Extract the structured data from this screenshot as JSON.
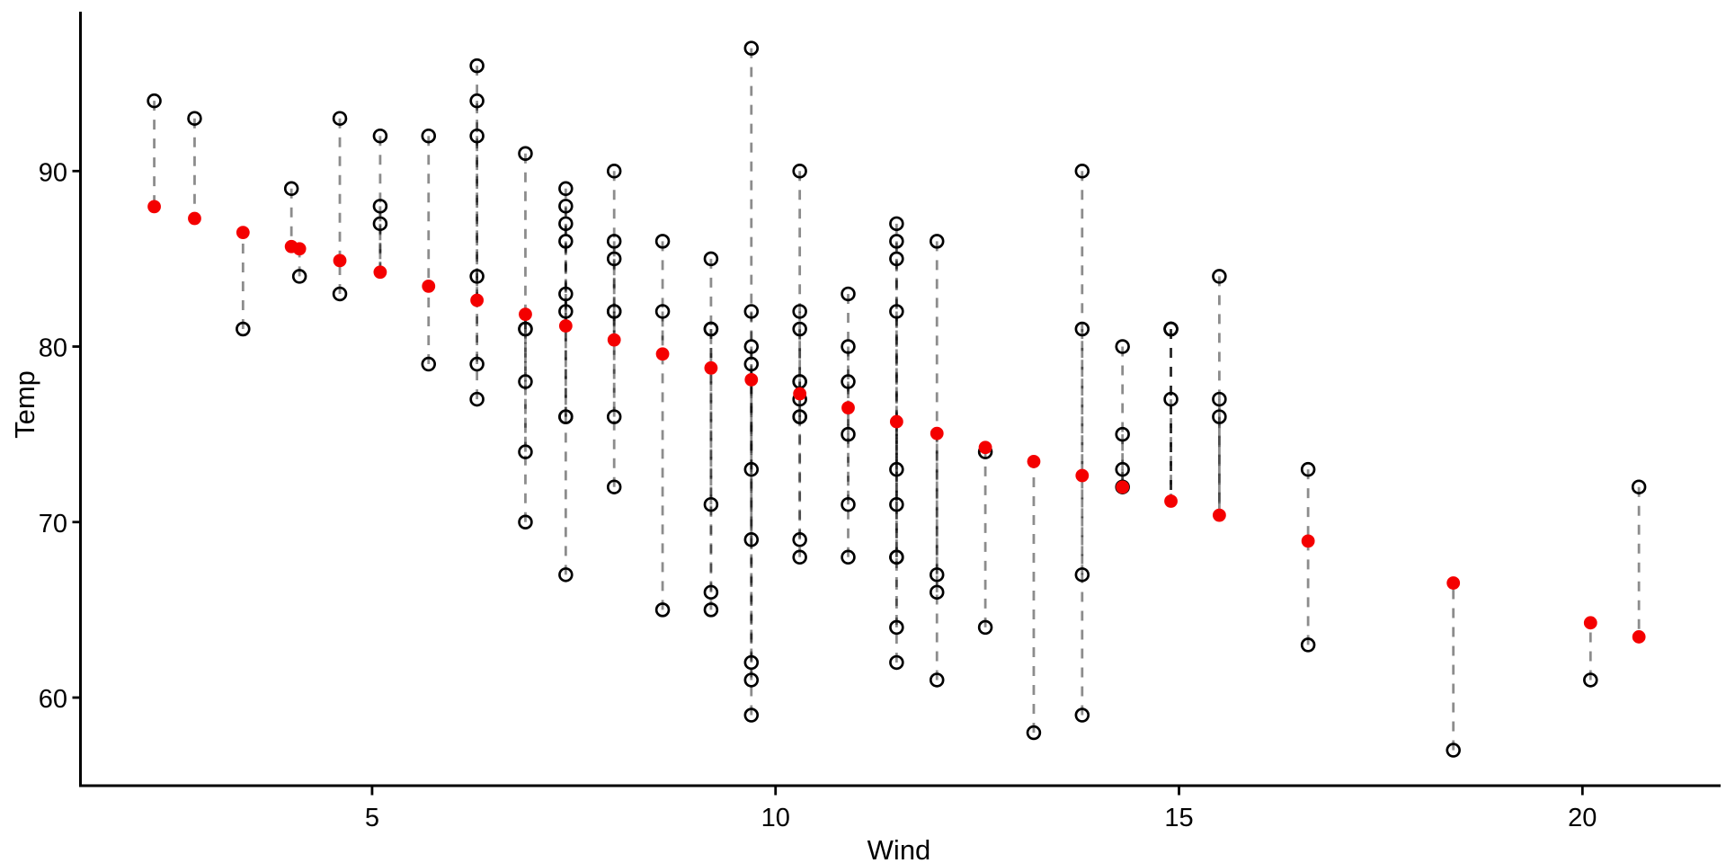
{
  "chart_data": {
    "type": "scatter",
    "title": "",
    "xlabel": "Wind",
    "ylabel": "Temp",
    "x_ticks": [
      5,
      10,
      15,
      20
    ],
    "y_ticks": [
      90,
      80,
      70,
      60
    ],
    "xlim": [
      1.38,
      21.69
    ],
    "ylim": [
      54.98,
      99.08
    ],
    "grid": false,
    "legend_position": "none",
    "colors": {
      "background": "#ffffff",
      "axis": "#000000",
      "text": "#000000",
      "observed_stroke": "#000000",
      "fitted_fill": "#F40000",
      "residual_segment": "rgba(0,0,0,0.45)"
    },
    "series": [
      {
        "name": "observed",
        "marker": "open-circle",
        "color": "#000000"
      },
      {
        "name": "fitted",
        "marker": "filled-circle",
        "color": "#F40000"
      },
      {
        "name": "residuals",
        "style": "dashed-segment",
        "color": "#8F8F8F"
      }
    ],
    "groups": [
      {
        "wind": 2.3,
        "fitted": 87.97,
        "observed": [
          94
        ]
      },
      {
        "wind": 2.8,
        "fitted": 87.3,
        "observed": [
          93
        ]
      },
      {
        "wind": 3.4,
        "fitted": 86.5,
        "observed": [
          81
        ]
      },
      {
        "wind": 4.0,
        "fitted": 85.7,
        "observed": [
          89
        ]
      },
      {
        "wind": 4.1,
        "fitted": 85.57,
        "observed": [
          84
        ]
      },
      {
        "wind": 4.6,
        "fitted": 84.9,
        "observed": [
          93,
          83
        ]
      },
      {
        "wind": 5.1,
        "fitted": 84.24,
        "observed": [
          92,
          88,
          87
        ]
      },
      {
        "wind": 5.7,
        "fitted": 83.44,
        "observed": [
          92,
          79
        ]
      },
      {
        "wind": 6.3,
        "fitted": 82.64,
        "observed": [
          96,
          94,
          92,
          84,
          79,
          77
        ]
      },
      {
        "wind": 6.9,
        "fitted": 81.84,
        "observed": [
          91,
          81,
          81,
          78,
          74,
          70
        ]
      },
      {
        "wind": 7.4,
        "fitted": 81.18,
        "observed": [
          89,
          88,
          87,
          86,
          83,
          82,
          76,
          76,
          67
        ]
      },
      {
        "wind": 8.0,
        "fitted": 80.38,
        "observed": [
          90,
          86,
          85,
          82,
          82,
          76,
          72
        ]
      },
      {
        "wind": 8.6,
        "fitted": 79.58,
        "observed": [
          86,
          82,
          65
        ]
      },
      {
        "wind": 9.2,
        "fitted": 78.78,
        "observed": [
          85,
          81,
          81,
          71,
          66,
          65
        ]
      },
      {
        "wind": 9.7,
        "fitted": 78.11,
        "observed": [
          97,
          82,
          80,
          79,
          73,
          69,
          62,
          61,
          59
        ]
      },
      {
        "wind": 10.3,
        "fitted": 77.31,
        "observed": [
          90,
          82,
          81,
          78,
          78,
          77,
          76,
          76,
          69,
          68
        ]
      },
      {
        "wind": 10.9,
        "fitted": 76.51,
        "observed": [
          83,
          80,
          78,
          75,
          71,
          68
        ]
      },
      {
        "wind": 11.5,
        "fitted": 75.72,
        "observed": [
          87,
          86,
          85,
          82,
          73,
          71,
          68,
          68,
          64,
          62
        ]
      },
      {
        "wind": 12.0,
        "fitted": 75.05,
        "observed": [
          86,
          67,
          66,
          61
        ]
      },
      {
        "wind": 12.6,
        "fitted": 74.25,
        "observed": [
          74,
          64
        ]
      },
      {
        "wind": 13.2,
        "fitted": 73.45,
        "observed": [
          58
        ]
      },
      {
        "wind": 13.8,
        "fitted": 72.65,
        "observed": [
          90,
          81,
          67,
          59
        ]
      },
      {
        "wind": 14.3,
        "fitted": 71.99,
        "observed": [
          80,
          75,
          73,
          72
        ]
      },
      {
        "wind": 14.9,
        "fitted": 71.19,
        "observed": [
          81,
          81,
          81,
          77
        ]
      },
      {
        "wind": 15.5,
        "fitted": 70.39,
        "observed": [
          84,
          77,
          76
        ]
      },
      {
        "wind": 16.6,
        "fitted": 68.92,
        "observed": [
          73,
          63
        ]
      },
      {
        "wind": 18.4,
        "fitted": 66.53,
        "observed": [
          57
        ]
      },
      {
        "wind": 20.1,
        "fitted": 64.26,
        "observed": [
          61
        ]
      },
      {
        "wind": 20.7,
        "fitted": 63.46,
        "observed": [
          72
        ]
      }
    ]
  }
}
